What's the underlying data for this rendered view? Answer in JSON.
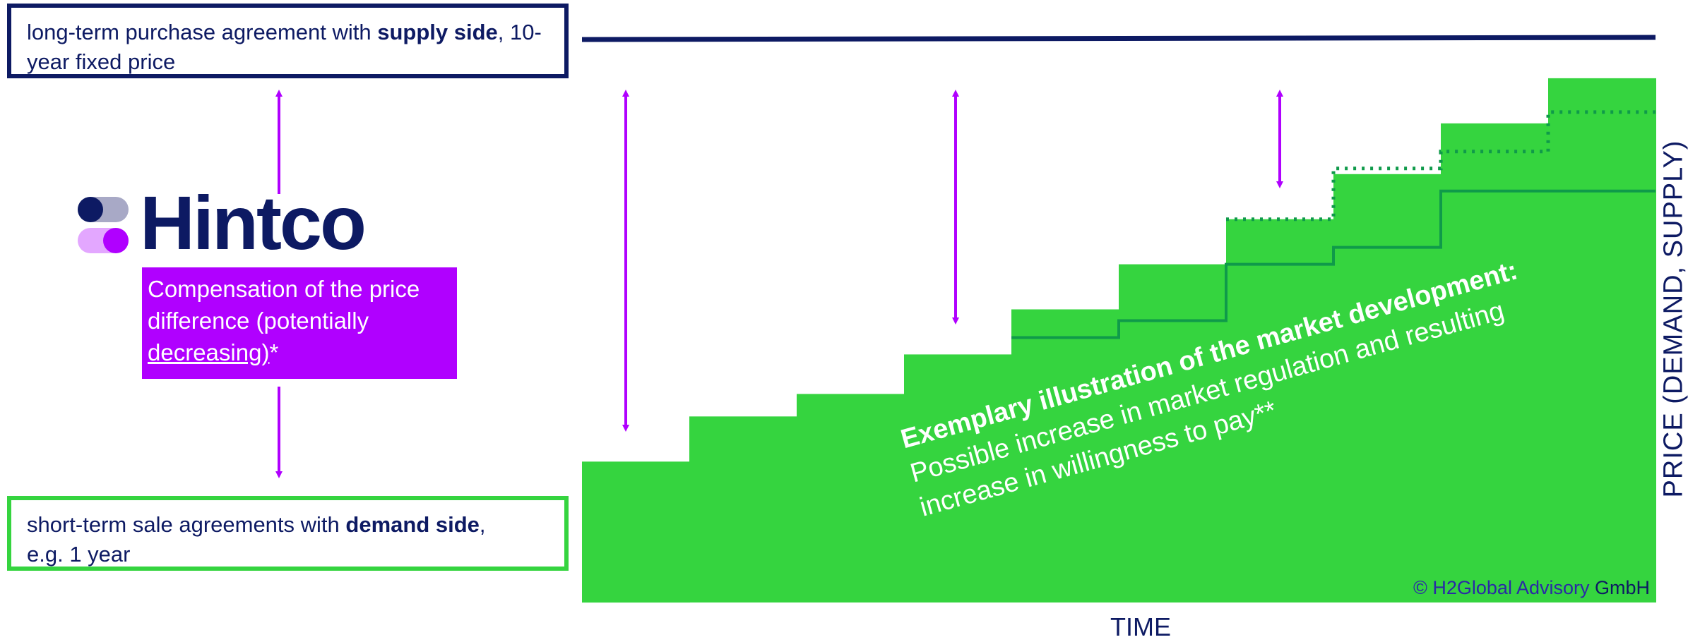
{
  "supply_box": {
    "text_before": "long-term purchase agreement with ",
    "bold": "supply side",
    "text_after": ", 10-",
    "line2": "year fixed price"
  },
  "demand_box": {
    "text_before": "short-term sale agreements with ",
    "bold": "demand side",
    "text_after": ",",
    "line2": "e.g. 1 year"
  },
  "logo": {
    "name": "Hintco"
  },
  "compensation": {
    "line1": "Compensation of the price",
    "line2": "difference (potentially",
    "underlined": "decreasing)",
    "suffix": "*"
  },
  "annotation": {
    "title": "Exemplary illustration of the market development:",
    "line1": "Possible increase in market regulation and resulting",
    "line2": "increase in willingness to pay**"
  },
  "axes": {
    "x_label": "TIME",
    "y_label": "PRICE (DEMAND, SUPPLY)"
  },
  "copyright": {
    "symbol_brand": "© H2Global Advisory",
    "suffix": " GmbH"
  },
  "colors": {
    "navy": "#0d1a63",
    "green": "#35d43f",
    "dark_green": "#0f9a4a",
    "purple": "#b000ff",
    "logo_gray": "#a8a9c6",
    "logo_lilac": "#e3a7ff"
  },
  "chart_data": {
    "type": "area",
    "description_steps": 10,
    "demand_steps": [
      0.25,
      0.33,
      0.37,
      0.44,
      0.52,
      0.6,
      0.68,
      0.76,
      0.85,
      0.93
    ],
    "supply_fixed_price": 1.0,
    "solid_line_steps": [
      null,
      null,
      null,
      null,
      0.47,
      0.5,
      0.6,
      0.63,
      0.73,
      0.73
    ],
    "dotted_line_steps": [
      null,
      null,
      null,
      null,
      null,
      null,
      0.68,
      0.77,
      0.8,
      0.87
    ]
  }
}
